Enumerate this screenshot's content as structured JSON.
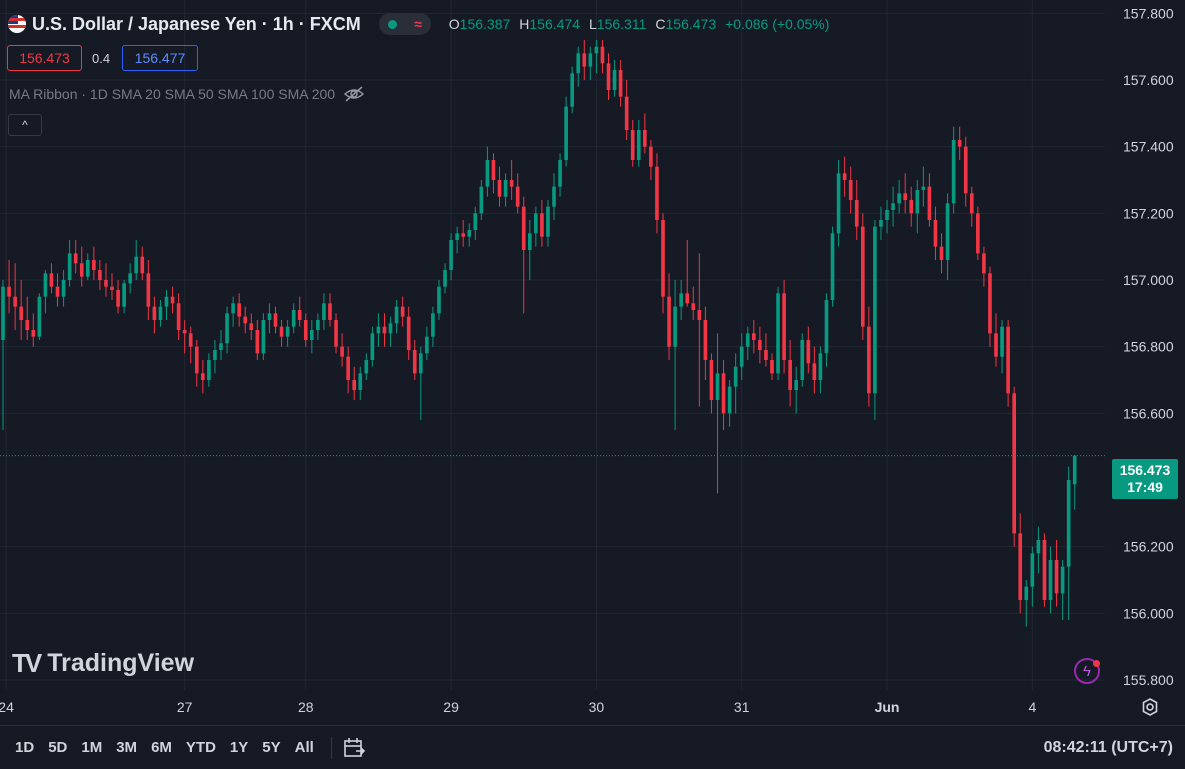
{
  "header": {
    "title": "U.S. Dollar / Japanese Yen · 1h · FXCM",
    "ohlc": {
      "o_label": "O",
      "o": "156.387",
      "h_label": "H",
      "h": "156.474",
      "l_label": "L",
      "l": "156.311",
      "c_label": "C",
      "c": "156.473",
      "change": "+0.086 (+0.05%)"
    },
    "bid": "156.473",
    "spread": "0.4",
    "ask": "156.477",
    "indicator": "MA Ribbon · 1D SMA 20 SMA 50 SMA 100 SMA 200"
  },
  "logo_text": "TradingView",
  "last_price": {
    "price": "156.473",
    "countdown": "17:49"
  },
  "bottom_bar": {
    "ranges": [
      "1D",
      "5D",
      "1M",
      "3M",
      "6M",
      "YTD",
      "1Y",
      "5Y",
      "All"
    ],
    "clock": "08:42:11 (UTC+7)"
  },
  "icons": {
    "flag": "us-japan-flag-icon",
    "eye": "eye-off-icon",
    "collapse": "chevron-up-icon",
    "bolt": "lightning-icon",
    "settings": "gear-icon",
    "calendar": "goto-date-icon"
  },
  "colors": {
    "background": "#161a25",
    "up": "#089981",
    "down": "#f23645",
    "grid": "#232733",
    "text": "#d1d4dc"
  },
  "chart_data": {
    "type": "candlestick",
    "title": "U.S. Dollar / Japanese Yen · 1h · FXCM",
    "y_ticks": [
      157.8,
      157.6,
      157.4,
      157.2,
      157.0,
      156.8,
      156.6,
      156.2,
      156.0,
      155.8
    ],
    "y_tick_labels": [
      "157.800",
      "157.600",
      "157.400",
      "157.200",
      "157.000",
      "156.800",
      "156.600",
      "156.200",
      "156.000",
      "155.800"
    ],
    "ylim": [
      155.77,
      157.84
    ],
    "x_ticks": [
      "24",
      "27",
      "28",
      "29",
      "30",
      "31",
      "Jun",
      "4"
    ],
    "x_tick_positions": [
      0.5,
      30,
      50,
      74,
      98,
      122,
      146,
      170
    ],
    "xlim": [
      -0.5,
      182
    ],
    "last_price": 156.473,
    "candles": [
      [
        156.82,
        157.0,
        156.55,
        156.98
      ],
      [
        156.98,
        157.06,
        156.9,
        156.95
      ],
      [
        156.95,
        157.05,
        156.85,
        156.92
      ],
      [
        156.92,
        157.0,
        156.82,
        156.88
      ],
      [
        156.88,
        156.95,
        156.82,
        156.85
      ],
      [
        156.85,
        156.9,
        156.8,
        156.83
      ],
      [
        156.83,
        156.96,
        156.82,
        156.95
      ],
      [
        156.95,
        157.03,
        156.9,
        157.02
      ],
      [
        157.02,
        157.05,
        156.96,
        156.98
      ],
      [
        156.98,
        157.02,
        156.92,
        156.95
      ],
      [
        156.95,
        157.03,
        156.92,
        157.0
      ],
      [
        157.0,
        157.12,
        156.98,
        157.08
      ],
      [
        157.08,
        157.12,
        157.02,
        157.05
      ],
      [
        157.05,
        157.1,
        156.98,
        157.01
      ],
      [
        157.01,
        157.08,
        157.0,
        157.06
      ],
      [
        157.06,
        157.1,
        157.0,
        157.03
      ],
      [
        157.03,
        157.06,
        156.97,
        157.0
      ],
      [
        157.0,
        157.05,
        156.95,
        156.98
      ],
      [
        156.98,
        157.02,
        156.94,
        156.97
      ],
      [
        156.97,
        157.0,
        156.9,
        156.92
      ],
      [
        156.92,
        157.0,
        156.9,
        156.99
      ],
      [
        156.99,
        157.05,
        156.96,
        157.02
      ],
      [
        157.02,
        157.12,
        157.0,
        157.07
      ],
      [
        157.07,
        157.1,
        157.0,
        157.02
      ],
      [
        157.02,
        157.06,
        156.88,
        156.92
      ],
      [
        156.92,
        156.95,
        156.84,
        156.88
      ],
      [
        156.88,
        156.94,
        156.86,
        156.92
      ],
      [
        156.92,
        156.97,
        156.88,
        156.95
      ],
      [
        156.95,
        156.98,
        156.9,
        156.93
      ],
      [
        156.93,
        156.96,
        156.82,
        156.85
      ],
      [
        156.85,
        156.88,
        156.78,
        156.84
      ],
      [
        156.84,
        156.86,
        156.75,
        156.8
      ],
      [
        156.8,
        156.82,
        156.68,
        156.72
      ],
      [
        156.72,
        156.76,
        156.66,
        156.7
      ],
      [
        156.7,
        156.78,
        156.68,
        156.76
      ],
      [
        156.76,
        156.82,
        156.72,
        156.79
      ],
      [
        156.79,
        156.85,
        156.76,
        156.81
      ],
      [
        156.81,
        156.92,
        156.78,
        156.9
      ],
      [
        156.9,
        156.95,
        156.86,
        156.93
      ],
      [
        156.93,
        156.96,
        156.86,
        156.89
      ],
      [
        156.89,
        156.92,
        156.84,
        156.87
      ],
      [
        156.87,
        156.9,
        156.82,
        156.85
      ],
      [
        156.85,
        156.88,
        156.76,
        156.78
      ],
      [
        156.78,
        156.9,
        156.76,
        156.88
      ],
      [
        156.88,
        156.93,
        156.84,
        156.9
      ],
      [
        156.9,
        156.92,
        156.84,
        156.86
      ],
      [
        156.86,
        156.88,
        156.8,
        156.83
      ],
      [
        156.83,
        156.88,
        156.8,
        156.86
      ],
      [
        156.86,
        156.93,
        156.84,
        156.91
      ],
      [
        156.91,
        156.95,
        156.86,
        156.88
      ],
      [
        156.88,
        156.9,
        156.8,
        156.82
      ],
      [
        156.82,
        156.88,
        156.78,
        156.85
      ],
      [
        156.85,
        156.9,
        156.82,
        156.88
      ],
      [
        156.88,
        156.96,
        156.85,
        156.93
      ],
      [
        156.93,
        156.96,
        156.86,
        156.88
      ],
      [
        156.88,
        156.9,
        156.78,
        156.8
      ],
      [
        156.8,
        156.84,
        156.74,
        156.77
      ],
      [
        156.77,
        156.8,
        156.66,
        156.7
      ],
      [
        156.7,
        156.74,
        156.64,
        156.67
      ],
      [
        156.67,
        156.74,
        156.64,
        156.72
      ],
      [
        156.72,
        156.78,
        156.7,
        156.76
      ],
      [
        156.76,
        156.86,
        156.74,
        156.84
      ],
      [
        156.84,
        156.9,
        156.8,
        156.86
      ],
      [
        156.86,
        156.9,
        156.8,
        156.84
      ],
      [
        156.84,
        156.89,
        156.8,
        156.87
      ],
      [
        156.87,
        156.94,
        156.84,
        156.92
      ],
      [
        156.92,
        156.95,
        156.86,
        156.89
      ],
      [
        156.89,
        156.92,
        156.76,
        156.79
      ],
      [
        156.79,
        156.82,
        156.7,
        156.72
      ],
      [
        156.72,
        156.8,
        156.58,
        156.78
      ],
      [
        156.78,
        156.86,
        156.76,
        156.83
      ],
      [
        156.83,
        156.92,
        156.8,
        156.9
      ],
      [
        156.9,
        157.0,
        156.88,
        156.98
      ],
      [
        156.98,
        157.05,
        156.96,
        157.03
      ],
      [
        157.03,
        157.14,
        157.0,
        157.12
      ],
      [
        157.12,
        157.16,
        157.08,
        157.14
      ],
      [
        157.14,
        157.18,
        157.1,
        157.13
      ],
      [
        157.13,
        157.17,
        157.1,
        157.15
      ],
      [
        157.15,
        157.22,
        157.12,
        157.2
      ],
      [
        157.2,
        157.3,
        157.18,
        157.28
      ],
      [
        157.28,
        157.4,
        157.25,
        157.36
      ],
      [
        157.36,
        157.38,
        157.26,
        157.3
      ],
      [
        157.3,
        157.34,
        157.22,
        157.25
      ],
      [
        157.25,
        157.32,
        157.22,
        157.3
      ],
      [
        157.3,
        157.36,
        157.24,
        157.28
      ],
      [
        157.28,
        157.32,
        157.2,
        157.22
      ],
      [
        157.22,
        157.25,
        156.9,
        157.09
      ],
      [
        157.09,
        157.18,
        157.0,
        157.14
      ],
      [
        157.14,
        157.22,
        157.1,
        157.2
      ],
      [
        157.2,
        157.24,
        157.1,
        157.13
      ],
      [
        157.13,
        157.24,
        157.1,
        157.22
      ],
      [
        157.22,
        157.32,
        157.18,
        157.28
      ],
      [
        157.28,
        157.38,
        157.25,
        157.36
      ],
      [
        157.36,
        157.55,
        157.34,
        157.52
      ],
      [
        157.52,
        157.64,
        157.5,
        157.62
      ],
      [
        157.62,
        157.7,
        157.58,
        157.68
      ],
      [
        157.68,
        157.72,
        157.6,
        157.64
      ],
      [
        157.64,
        157.7,
        157.6,
        157.68
      ],
      [
        157.68,
        157.72,
        157.62,
        157.7
      ],
      [
        157.7,
        157.72,
        157.62,
        157.65
      ],
      [
        157.65,
        157.68,
        157.54,
        157.57
      ],
      [
        157.57,
        157.66,
        157.55,
        157.63
      ],
      [
        157.63,
        157.66,
        157.52,
        157.55
      ],
      [
        157.55,
        157.6,
        157.42,
        157.45
      ],
      [
        157.45,
        157.48,
        157.34,
        157.36
      ],
      [
        157.36,
        157.48,
        157.34,
        157.45
      ],
      [
        157.45,
        157.5,
        157.38,
        157.4
      ],
      [
        157.4,
        157.42,
        157.3,
        157.34
      ],
      [
        157.34,
        157.38,
        157.14,
        157.18
      ],
      [
        157.18,
        157.2,
        156.9,
        156.95
      ],
      [
        156.95,
        157.02,
        156.76,
        156.8
      ],
      [
        156.8,
        157.0,
        156.55,
        156.92
      ],
      [
        156.92,
        157.0,
        156.88,
        156.96
      ],
      [
        156.96,
        157.12,
        156.92,
        156.93
      ],
      [
        156.93,
        156.98,
        156.88,
        156.91
      ],
      [
        156.91,
        157.08,
        156.62,
        156.88
      ],
      [
        156.88,
        156.92,
        156.7,
        156.76
      ],
      [
        156.76,
        156.78,
        156.6,
        156.64
      ],
      [
        156.64,
        156.84,
        156.36,
        156.72
      ],
      [
        156.72,
        156.76,
        156.55,
        156.6
      ],
      [
        156.6,
        156.7,
        156.56,
        156.68
      ],
      [
        156.68,
        156.78,
        156.6,
        156.74
      ],
      [
        156.74,
        156.84,
        156.7,
        156.8
      ],
      [
        156.8,
        156.86,
        156.76,
        156.84
      ],
      [
        156.84,
        156.88,
        156.78,
        156.82
      ],
      [
        156.82,
        156.86,
        156.75,
        156.79
      ],
      [
        156.79,
        156.84,
        156.74,
        156.76
      ],
      [
        156.76,
        156.78,
        156.7,
        156.72
      ],
      [
        156.72,
        156.98,
        156.7,
        156.96
      ],
      [
        156.96,
        157.0,
        156.72,
        156.76
      ],
      [
        156.76,
        156.82,
        156.62,
        156.67
      ],
      [
        156.67,
        156.74,
        156.6,
        156.7
      ],
      [
        156.7,
        156.84,
        156.68,
        156.82
      ],
      [
        156.82,
        156.86,
        156.72,
        156.75
      ],
      [
        156.75,
        156.8,
        156.66,
        156.7
      ],
      [
        156.7,
        156.8,
        156.66,
        156.78
      ],
      [
        156.78,
        156.96,
        156.74,
        156.94
      ],
      [
        156.94,
        157.16,
        156.92,
        157.14
      ],
      [
        157.14,
        157.36,
        157.1,
        157.32
      ],
      [
        157.32,
        157.37,
        157.25,
        157.3
      ],
      [
        157.3,
        157.34,
        157.2,
        157.24
      ],
      [
        157.24,
        157.3,
        157.12,
        157.16
      ],
      [
        157.16,
        157.2,
        156.82,
        156.86
      ],
      [
        156.86,
        156.92,
        156.62,
        156.66
      ],
      [
        156.66,
        157.18,
        156.58,
        157.16
      ],
      [
        157.16,
        157.22,
        157.12,
        157.18
      ],
      [
        157.18,
        157.24,
        157.14,
        157.21
      ],
      [
        157.21,
        157.28,
        157.16,
        157.23
      ],
      [
        157.23,
        157.3,
        157.2,
        157.26
      ],
      [
        157.26,
        157.32,
        157.2,
        157.24
      ],
      [
        157.24,
        157.28,
        157.16,
        157.2
      ],
      [
        157.2,
        157.3,
        157.14,
        157.27
      ],
      [
        157.27,
        157.34,
        157.22,
        157.28
      ],
      [
        157.28,
        157.32,
        157.16,
        157.18
      ],
      [
        157.18,
        157.22,
        157.06,
        157.1
      ],
      [
        157.1,
        157.14,
        157.02,
        157.06
      ],
      [
        157.06,
        157.26,
        157.0,
        157.23
      ],
      [
        157.23,
        157.46,
        157.2,
        157.42
      ],
      [
        157.42,
        157.46,
        157.36,
        157.4
      ],
      [
        157.4,
        157.43,
        157.22,
        157.26
      ],
      [
        157.26,
        157.28,
        157.16,
        157.2
      ],
      [
        157.2,
        157.22,
        157.06,
        157.08
      ],
      [
        157.08,
        157.1,
        156.98,
        157.02
      ],
      [
        157.02,
        157.04,
        156.8,
        156.84
      ],
      [
        156.84,
        156.9,
        156.74,
        156.77
      ],
      [
        156.77,
        156.88,
        156.72,
        156.86
      ],
      [
        156.86,
        156.88,
        156.62,
        156.66
      ],
      [
        156.66,
        156.68,
        156.2,
        156.24
      ],
      [
        156.24,
        156.3,
        156.0,
        156.04
      ],
      [
        156.04,
        156.1,
        155.96,
        156.08
      ],
      [
        156.08,
        156.2,
        156.02,
        156.18
      ],
      [
        156.18,
        156.26,
        156.12,
        156.22
      ],
      [
        156.22,
        156.24,
        156.02,
        156.04
      ],
      [
        156.04,
        156.2,
        156.0,
        156.16
      ],
      [
        156.16,
        156.22,
        156.02,
        156.06
      ],
      [
        156.06,
        156.16,
        155.98,
        156.14
      ],
      [
        156.14,
        156.44,
        155.98,
        156.4
      ],
      [
        156.387,
        156.474,
        156.311,
        156.473
      ]
    ]
  }
}
